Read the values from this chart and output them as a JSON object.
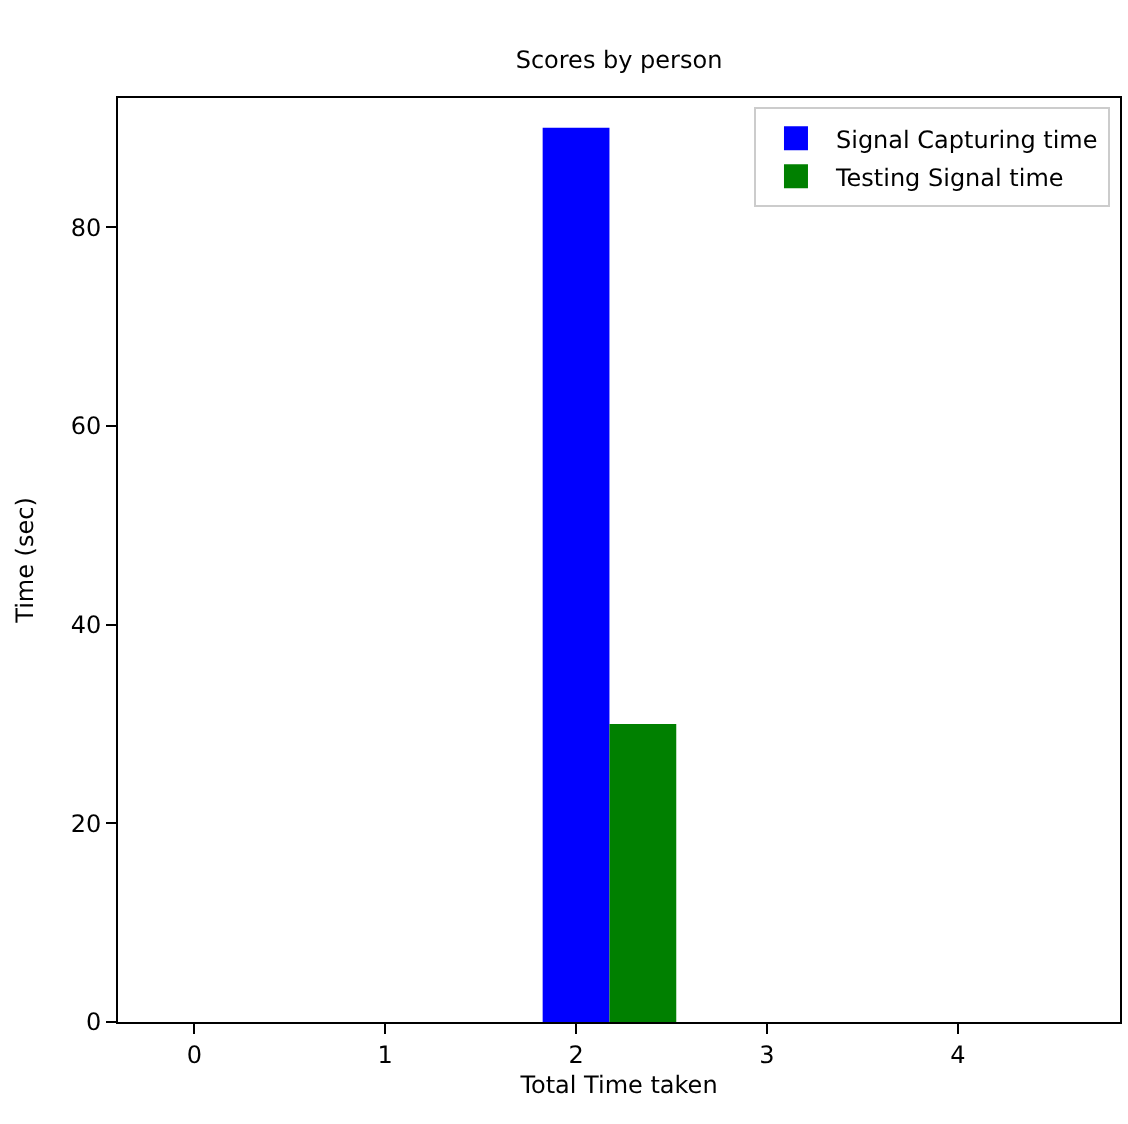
{
  "chart_data": {
    "type": "bar",
    "title": "Scores by person",
    "xlabel": "Total Time taken",
    "ylabel": "Time (sec)",
    "xlim": [
      -0.4,
      4.85
    ],
    "xticks": [
      0,
      1,
      2,
      3,
      4
    ],
    "ylim": [
      0,
      93
    ],
    "yticks": [
      0,
      20,
      40,
      60,
      80
    ],
    "legend": "top right",
    "series": [
      {
        "name": "Signal Capturing time",
        "color": "#0000ff",
        "x": [
          2
        ],
        "values": [
          90
        ]
      },
      {
        "name": "Testing Signal time",
        "color": "#008000",
        "x": [
          2.35
        ],
        "values": [
          30
        ]
      }
    ]
  }
}
